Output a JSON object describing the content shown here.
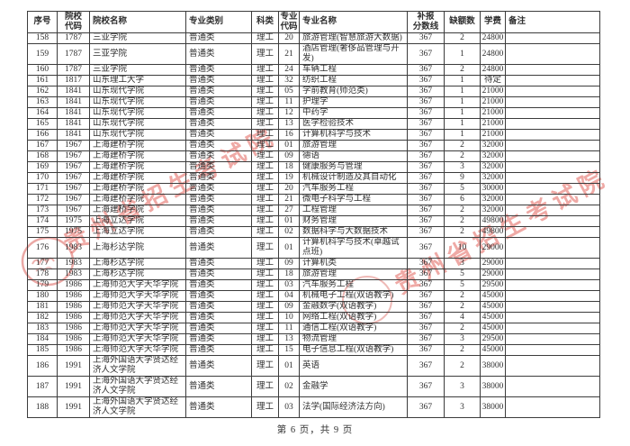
{
  "page": {
    "footer": "第 6 页，共 9 页"
  },
  "watermark": {
    "text": "贵州省招生考试院",
    "color": "#e2635d",
    "seal_color": "#d8524c"
  },
  "table": {
    "headers": [
      "序号",
      "院校\n代码",
      "院校名称",
      "专业类别",
      "科类",
      "专业\n代码",
      "专业名称",
      "补报\n分数线",
      "缺额数",
      "学费",
      "备注"
    ],
    "rows": [
      [
        "158",
        "1787",
        "三亚学院",
        "普通类",
        "理工",
        "20",
        "旅游管理(智慧旅游大数据)",
        "367",
        "2",
        "24800",
        ""
      ],
      [
        "159",
        "1787",
        "三亚学院",
        "普通类",
        "理工",
        "21",
        "酒店管理(奢侈品管理与开发)",
        "367",
        "1",
        "24800",
        ""
      ],
      [
        "160",
        "1787",
        "三亚学院",
        "普通类",
        "理工",
        "24",
        "车辆工程",
        "367",
        "2",
        "24800",
        ""
      ],
      [
        "161",
        "1817",
        "山东理工大学",
        "普通类",
        "理工",
        "32",
        "纺织工程",
        "367",
        "1",
        "待定",
        ""
      ],
      [
        "162",
        "1841",
        "山东现代学院",
        "普通类",
        "理工",
        "05",
        "学前教育(师范类)",
        "367",
        "1",
        "21000",
        ""
      ],
      [
        "163",
        "1841",
        "山东现代学院",
        "普通类",
        "理工",
        "11",
        "护理学",
        "367",
        "1",
        "21000",
        ""
      ],
      [
        "164",
        "1841",
        "山东现代学院",
        "普通类",
        "理工",
        "12",
        "中药学",
        "367",
        "1",
        "21000",
        ""
      ],
      [
        "165",
        "1841",
        "山东现代学院",
        "普通类",
        "理工",
        "13",
        "医学检验技术",
        "367",
        "1",
        "21000",
        ""
      ],
      [
        "166",
        "1841",
        "山东现代学院",
        "普通类",
        "理工",
        "16",
        "计算机科学与技术",
        "367",
        "1",
        "21000",
        ""
      ],
      [
        "167",
        "1967",
        "上海建桥学院",
        "普通类",
        "理工",
        "01",
        "旅游管理",
        "367",
        "2",
        "32000",
        ""
      ],
      [
        "168",
        "1967",
        "上海建桥学院",
        "普通类",
        "理工",
        "09",
        "德语",
        "367",
        "2",
        "32000",
        ""
      ],
      [
        "169",
        "1967",
        "上海建桥学院",
        "普通类",
        "理工",
        "18",
        "健康服务与管理",
        "367",
        "3",
        "32000",
        ""
      ],
      [
        "170",
        "1967",
        "上海建桥学院",
        "普通类",
        "理工",
        "19",
        "机械设计制造及其自动化",
        "367",
        "9",
        "32000",
        ""
      ],
      [
        "171",
        "1967",
        "上海建桥学院",
        "普通类",
        "理工",
        "20",
        "汽车服务工程",
        "367",
        "5",
        "30000",
        ""
      ],
      [
        "172",
        "1967",
        "上海建桥学院",
        "普通类",
        "理工",
        "21",
        "微电子科学与工程",
        "367",
        "6",
        "32000",
        ""
      ],
      [
        "173",
        "1967",
        "上海建桥学院",
        "普通类",
        "理工",
        "27",
        "工程管理",
        "367",
        "2",
        "32000",
        ""
      ],
      [
        "174",
        "1975",
        "上海立达学院",
        "普通类",
        "理工",
        "01",
        "财务管理",
        "367",
        "2",
        "49800",
        ""
      ],
      [
        "175",
        "1975",
        "上海立达学院",
        "普通类",
        "理工",
        "02",
        "数据科学与大数据技术",
        "367",
        "2",
        "49800",
        ""
      ],
      [
        "176",
        "1983",
        "上海杉达学院",
        "普通类",
        "理工",
        "01",
        "计算机科学与技术(卓越试点班)",
        "367",
        "10",
        "29000",
        ""
      ],
      [
        "177",
        "1983",
        "上海杉达学院",
        "普通类",
        "理工",
        "09",
        "计算机类",
        "367",
        "3",
        "29000",
        ""
      ],
      [
        "178",
        "1983",
        "上海杉达学院",
        "普通类",
        "理工",
        "18",
        "旅游管理",
        "367",
        "5",
        "29000",
        ""
      ],
      [
        "179",
        "1986",
        "上海师范大学天华学院",
        "普通类",
        "理工",
        "03",
        "汽车服务工程",
        "367",
        "5",
        "29500",
        ""
      ],
      [
        "180",
        "1986",
        "上海师范大学天华学院",
        "普通类",
        "理工",
        "04",
        "机械电子工程(双语教学)",
        "367",
        "2",
        "45000",
        ""
      ],
      [
        "181",
        "1986",
        "上海师范大学天华学院",
        "普通类",
        "理工",
        "09",
        "金融数学(双语教学)",
        "367",
        "2",
        "45000",
        ""
      ],
      [
        "182",
        "1986",
        "上海师范大学天华学院",
        "普通类",
        "理工",
        "10",
        "网络工程(双语教学)",
        "367",
        "4",
        "45000",
        ""
      ],
      [
        "183",
        "1986",
        "上海师范大学天华学院",
        "普通类",
        "理工",
        "11",
        "通信工程(双语教学)",
        "367",
        "2",
        "45000",
        ""
      ],
      [
        "184",
        "1986",
        "上海师范大学天华学院",
        "普通类",
        "理工",
        "13",
        "物流管理",
        "367",
        "3",
        "29500",
        ""
      ],
      [
        "185",
        "1986",
        "上海师范大学天华学院",
        "普通类",
        "理工",
        "15",
        "电子信息工程(双语教学)",
        "367",
        "2",
        "45000",
        ""
      ],
      [
        "186",
        "1991",
        "上海外国语大学贤达经济人文学院",
        "普通类",
        "理工",
        "01",
        "英语",
        "367",
        "2",
        "38000",
        ""
      ],
      [
        "187",
        "1991",
        "上海外国语大学贤达经济人文学院",
        "普通类",
        "理工",
        "02",
        "金融学",
        "367",
        "3",
        "38000",
        ""
      ],
      [
        "188",
        "1991",
        "上海外国语大学贤达经济人文学院",
        "普通类",
        "理工",
        "03",
        "法学(国际经济法方向)",
        "367",
        "3",
        "38000",
        ""
      ]
    ]
  }
}
